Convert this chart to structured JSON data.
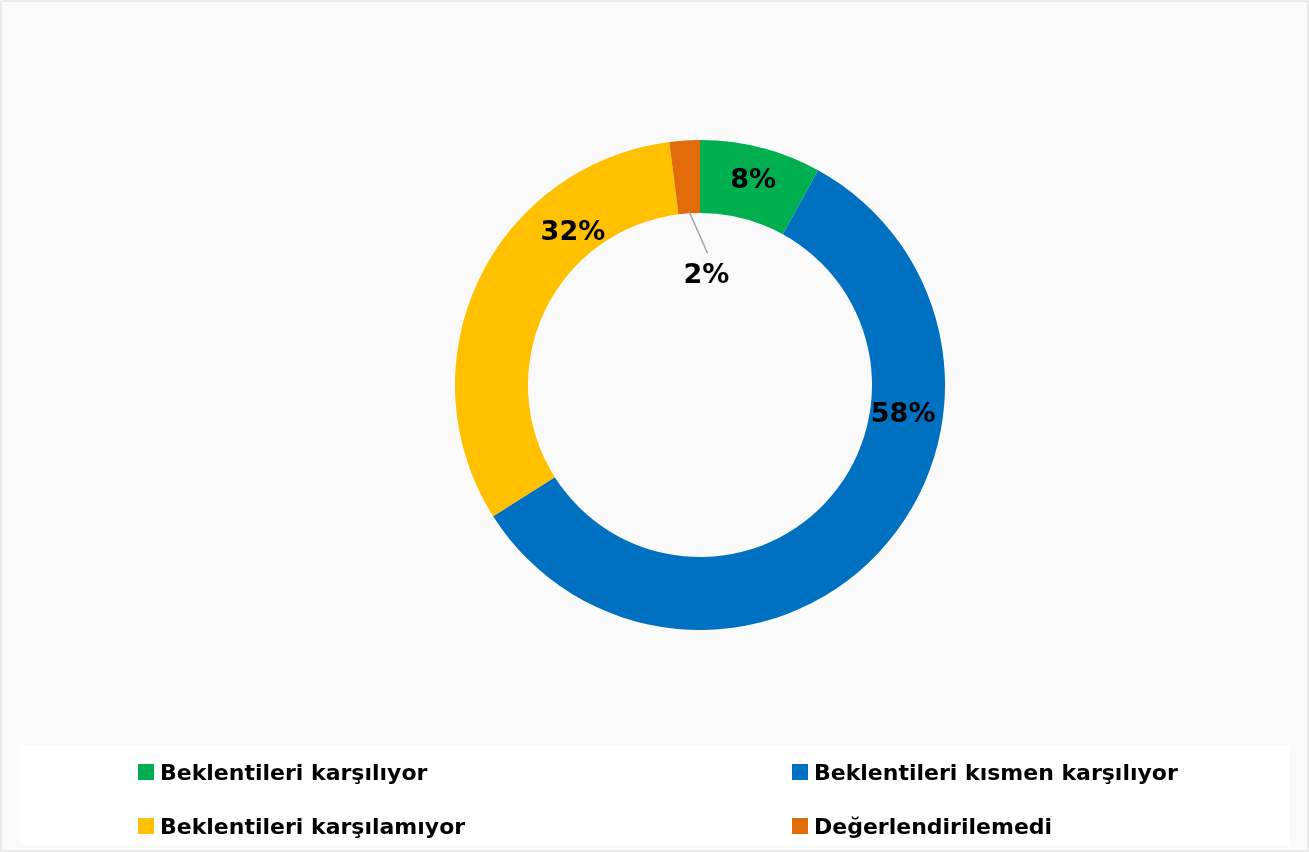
{
  "chart_data": {
    "type": "donut",
    "categories": [
      "Beklentileri karşılıyor",
      "Beklentileri kısmen karşılıyor",
      "Beklentileri karşılamıyor",
      "Değerlendirilemedi"
    ],
    "values": [
      8,
      58,
      32,
      2
    ],
    "colors": [
      "#00b050",
      "#0070c0",
      "#ffc000",
      "#e36c0a"
    ],
    "value_labels": [
      "8%",
      "58%",
      "32%",
      "2%"
    ],
    "legend": "bottom"
  }
}
